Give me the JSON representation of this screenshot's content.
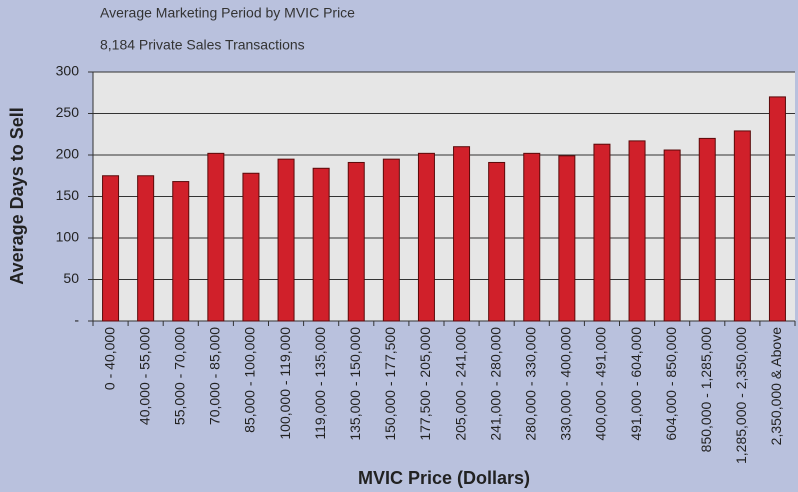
{
  "chart_data": {
    "type": "bar",
    "title": "Average Marketing Period by MVIC Price",
    "subtitle": "8,184 Private Sales Transactions",
    "x_label": "MVIC Price (Dollars)",
    "y_label": "Average Days to Sell",
    "categories": [
      "0 - 40,000",
      "40,000 - 55,000",
      "55,000 - 70,000",
      "70,000 - 85,000",
      "85,000 - 100,000",
      "100,000 - 119,000",
      "119,000 - 135,000",
      "135,000 - 150,000",
      "150,000 - 177,500",
      "177,500 - 205,000",
      "205,000 - 241,000",
      "241,000 - 280,000",
      "280,000 - 330,000",
      "330,000 - 400,000",
      "400,000 - 491,000",
      "491,000 - 604,000",
      "604,000 - 850,000",
      "850,000 - 1,285,000",
      "1,285,000 - 2,350,000",
      "2,350,000 & Above"
    ],
    "values": [
      175,
      175,
      168,
      202,
      178,
      195,
      184,
      191,
      195,
      202,
      210,
      191,
      202,
      199,
      213,
      217,
      206,
      220,
      229,
      270
    ],
    "color": "#d0202a",
    "ylim": [
      0,
      300
    ],
    "yticks": [
      {
        "value": 0,
        "label": "-"
      },
      50,
      100,
      150,
      200,
      250,
      300
    ],
    "grid": true
  }
}
